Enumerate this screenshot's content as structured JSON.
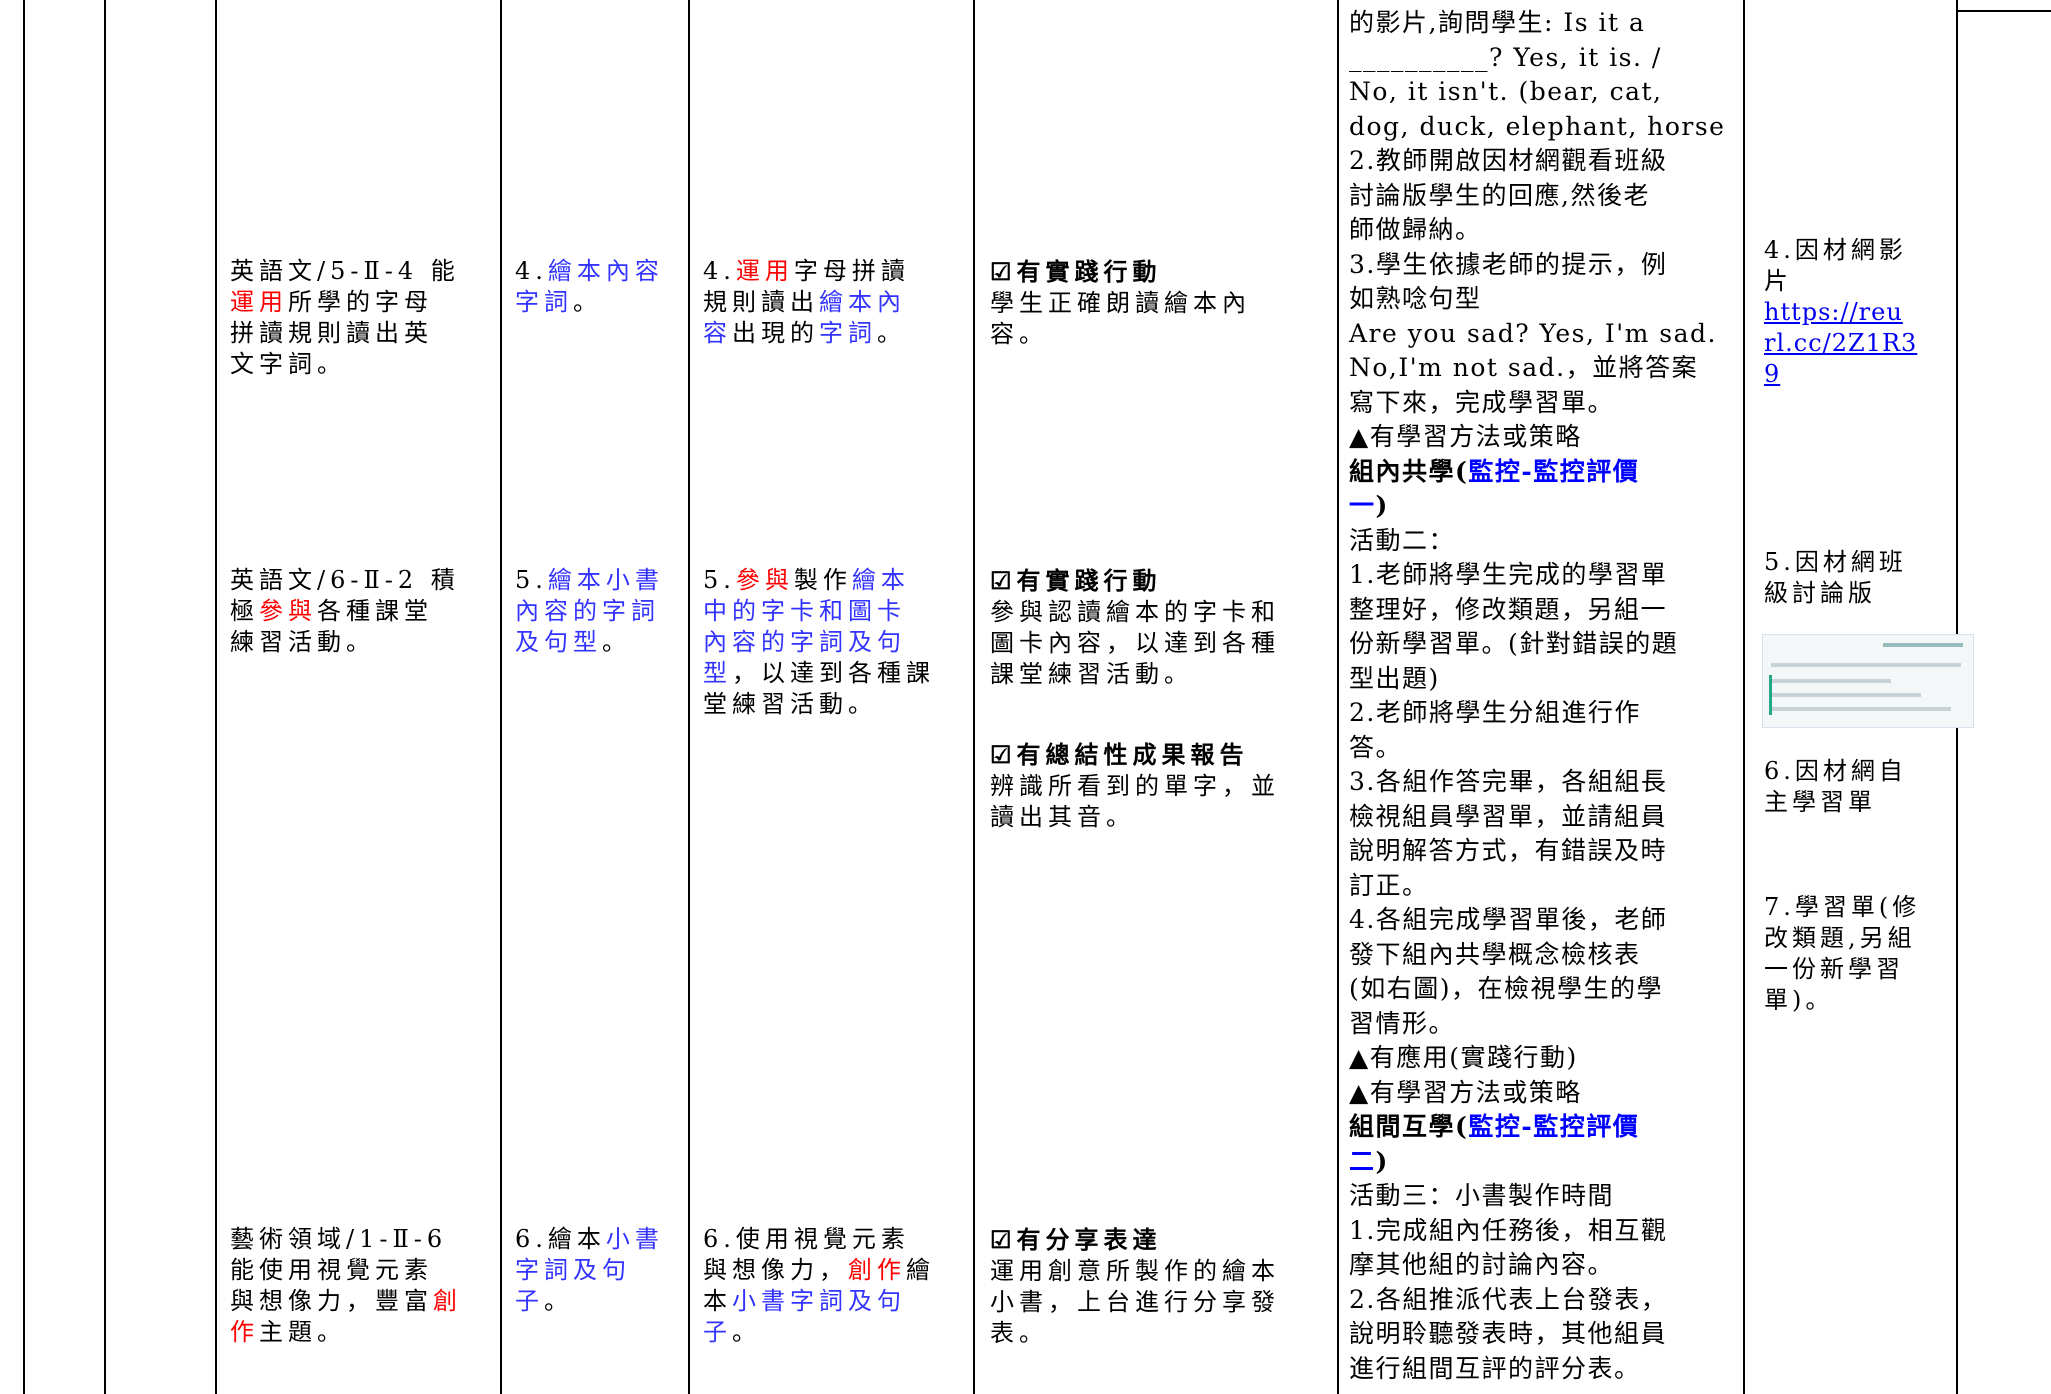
{
  "table": {
    "columns": [
      {
        "blocks": [
          {
            "lines": [
              [
                "英語文/5-Ⅱ-4 能"
              ],
              [
                {
                  "text": "運用",
                  "style": "red"
                },
                "所學的字母"
              ],
              [
                "拼讀規則讀出英"
              ],
              [
                "文字詞。"
              ]
            ]
          },
          {
            "lines": [
              [
                "英語文/6-Ⅱ-2 積"
              ],
              [
                "極",
                {
                  "text": "參與",
                  "style": "red"
                },
                "各種課堂"
              ],
              [
                "練習活動。"
              ]
            ]
          },
          {
            "lines": [
              [
                "藝術領域/1-Ⅱ-6"
              ],
              [
                "能使用視覺元素"
              ],
              [
                "與想像力，豐富",
                {
                  "text": "創",
                  "style": "red"
                }
              ],
              [
                {
                  "text": "作",
                  "style": "red"
                },
                "主題。"
              ]
            ]
          }
        ]
      },
      {
        "blocks": [
          {
            "lines": [
              [
                "4.",
                {
                  "text": "繪本內容",
                  "style": "blue"
                }
              ],
              [
                {
                  "text": "字詞",
                  "style": "blue"
                },
                "。"
              ]
            ]
          },
          {
            "lines": [
              [
                "5.",
                {
                  "text": "繪本小書",
                  "style": "blue"
                }
              ],
              [
                {
                  "text": "內容的字詞",
                  "style": "blue"
                }
              ],
              [
                {
                  "text": "及句型",
                  "style": "blue"
                },
                "。"
              ]
            ]
          },
          {
            "lines": [
              [
                "6.繪本",
                {
                  "text": "小書",
                  "style": "blue"
                }
              ],
              [
                {
                  "text": "字詞及句",
                  "style": "blue"
                }
              ],
              [
                {
                  "text": "子",
                  "style": "blue"
                },
                "。"
              ]
            ]
          }
        ]
      },
      {
        "blocks": [
          {
            "lines": [
              [
                "4.",
                {
                  "text": "運用",
                  "style": "red"
                },
                "字母拼讀"
              ],
              [
                "規則讀出",
                {
                  "text": "繪本內",
                  "style": "blue"
                }
              ],
              [
                {
                  "text": "容",
                  "style": "blue"
                },
                "出現的",
                {
                  "text": "字詞",
                  "style": "blue"
                },
                "。"
              ]
            ]
          },
          {
            "lines": [
              [
                "5.",
                {
                  "text": "參與",
                  "style": "red"
                },
                "製作",
                {
                  "text": "繪本",
                  "style": "blue"
                }
              ],
              [
                {
                  "text": "中的字卡和圖卡",
                  "style": "blue"
                }
              ],
              [
                {
                  "text": "內容的字詞及句",
                  "style": "blue"
                }
              ],
              [
                {
                  "text": "型",
                  "style": "blue"
                },
                "，以達到各種課"
              ],
              [
                "堂練習活動。"
              ]
            ]
          },
          {
            "lines": [
              [
                "6.使用視覺元素"
              ],
              [
                "與想像力，",
                {
                  "text": "創作",
                  "style": "red"
                },
                "繪"
              ],
              [
                "本",
                {
                  "text": "小書字詞及句",
                  "style": "blue"
                }
              ],
              [
                {
                  "text": "子",
                  "style": "blue"
                },
                "。"
              ]
            ]
          }
        ]
      },
      {
        "blocks": [
          {
            "lines": [
              [
                {
                  "text": "☑有實踐行動",
                  "style": "bold"
                }
              ],
              [
                "學生正確朗讀繪本內"
              ],
              [
                "容。"
              ]
            ]
          },
          {
            "lines": [
              [
                {
                  "text": "☑有實踐行動",
                  "style": "bold"
                }
              ],
              [
                "參與認讀繪本的字卡和"
              ],
              [
                "圖卡內容，以達到各種"
              ],
              [
                "課堂練習活動。"
              ]
            ]
          },
          {
            "lines": [
              [
                {
                  "text": "☑有總結性成果報告",
                  "style": "bold"
                }
              ],
              [
                "辨識所看到的單字，並"
              ],
              [
                "讀出其音。"
              ]
            ]
          },
          {
            "lines": [
              [
                {
                  "text": "☑有分享表達",
                  "style": "bold"
                }
              ],
              [
                "運用創意所製作的繪本"
              ],
              [
                "小書，上台進行分享發"
              ],
              [
                "表。"
              ]
            ]
          }
        ]
      },
      {
        "blocks": [
          {
            "lines": [
              [
                "的影片,詢問學生: Is it a"
              ],
              [
                "__________? Yes, it is. /"
              ],
              [
                "No, it isn't. (bear, cat,"
              ],
              [
                "dog, duck, elephant, horse"
              ],
              [
                "2.教師開啟因材網觀看班級"
              ],
              [
                "討論版學生的回應,然後老"
              ],
              [
                "師做歸納。"
              ],
              [
                "3.學生依據老師的提示，例"
              ],
              [
                "如熟唸句型"
              ],
              [
                "Are you sad? Yes, I'm sad."
              ],
              [
                "No,I'm not sad.，並將答案"
              ],
              [
                "寫下來，完成學習單。"
              ],
              [
                "▲有學習方法或策略"
              ],
              [
                {
                  "text": "組內共學(",
                  "style": "bold"
                },
                {
                  "text": "監控-監控評價",
                  "style": "bold-blue"
                }
              ],
              [
                {
                  "text": "一",
                  "style": "bold-blue"
                },
                {
                  "text": ")",
                  "style": "bold"
                }
              ],
              [
                "活動二："
              ],
              [
                "1.老師將學生完成的學習單"
              ],
              [
                "整理好，修改類題，另組一"
              ],
              [
                "份新學習單。(針對錯誤的題"
              ],
              [
                "型出題)"
              ],
              [
                "2.老師將學生分組進行作"
              ],
              [
                "答。"
              ],
              [
                "3.各組作答完畢，各組組長"
              ],
              [
                "檢視組員學習單，並請組員"
              ],
              [
                "說明解答方式，有錯誤及時"
              ],
              [
                "訂正。"
              ],
              [
                "4.各組完成學習單後，老師"
              ],
              [
                "發下組內共學概念檢核表"
              ],
              [
                "(如右圖)，在檢視學生的學"
              ],
              [
                "習情形。"
              ],
              [
                "▲有應用(實踐行動)"
              ],
              [
                "▲有學習方法或策略"
              ],
              [
                {
                  "text": "組間互學(",
                  "style": "bold"
                },
                {
                  "text": "監控-監控評價",
                  "style": "bold-blue"
                }
              ],
              [
                {
                  "text": "二",
                  "style": "bold-blue"
                },
                {
                  "text": ")",
                  "style": "bold"
                }
              ],
              [
                "活動三：小書製作時間"
              ],
              [
                "1.完成組內任務後，相互觀"
              ],
              [
                "摩其他組的討論內容。"
              ],
              [
                "2.各組推派代表上台發表，"
              ],
              [
                "說明聆聽發表時，其他組員"
              ],
              [
                "進行組間互評的評分表。"
              ]
            ]
          }
        ]
      },
      {
        "blocks": [
          {
            "lines": [
              [
                "4.因材網影"
              ],
              [
                "片"
              ],
              [
                {
                  "text": "https://reu",
                  "style": "link"
                }
              ],
              [
                {
                  "text": "rl.cc/2Z1R3",
                  "style": "link"
                }
              ],
              [
                {
                  "text": "9",
                  "style": "link"
                }
              ]
            ]
          },
          {
            "lines": [
              [
                "5.因材網班"
              ],
              [
                "級討論版"
              ]
            ]
          },
          {
            "lines": [
              [
                "6.因材網自"
              ],
              [
                "主學習單"
              ]
            ]
          },
          {
            "lines": [
              [
                "7.學習單(修"
              ],
              [
                "改類題,另組"
              ],
              [
                "一份新學習"
              ],
              [
                "單)。"
              ]
            ]
          }
        ]
      }
    ]
  }
}
